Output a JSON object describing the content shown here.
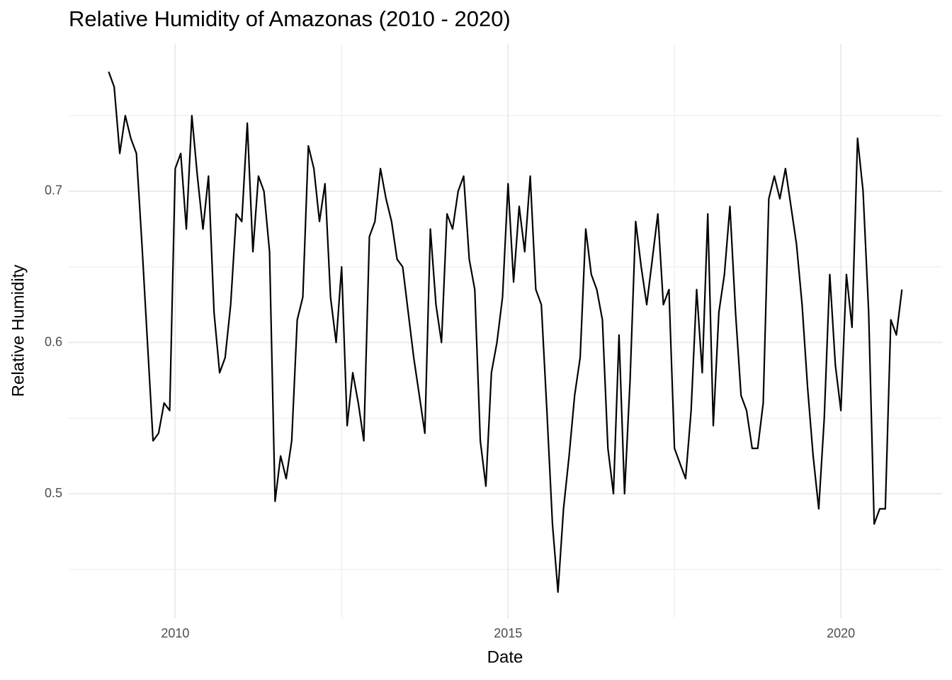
{
  "chart_data": {
    "type": "line",
    "title": "Relative Humidity of Amazonas (2010 - 2020)",
    "xlabel": "Date",
    "ylabel": "Relative Humidity",
    "color": "#000000",
    "grid": true,
    "xlim": [
      2008.4,
      2021.52
    ],
    "ylim": [
      0.4176,
      0.7974
    ],
    "xticks": [
      2010,
      2015,
      2020
    ],
    "yticks": [
      0.5,
      0.6,
      0.7
    ],
    "minor_xticks": [
      2012.5,
      2017.5
    ],
    "minor_yticks": [
      0.45,
      0.55,
      0.65,
      0.75
    ],
    "x": [
      2009.0,
      2009.083,
      2009.167,
      2009.25,
      2009.333,
      2009.417,
      2009.5,
      2009.583,
      2009.667,
      2009.75,
      2009.833,
      2009.917,
      2010.0,
      2010.083,
      2010.167,
      2010.25,
      2010.333,
      2010.417,
      2010.5,
      2010.583,
      2010.667,
      2010.75,
      2010.833,
      2010.917,
      2011.0,
      2011.083,
      2011.167,
      2011.25,
      2011.333,
      2011.417,
      2011.5,
      2011.583,
      2011.667,
      2011.75,
      2011.833,
      2011.917,
      2012.0,
      2012.083,
      2012.167,
      2012.25,
      2012.333,
      2012.417,
      2012.5,
      2012.583,
      2012.667,
      2012.75,
      2012.833,
      2012.917,
      2013.0,
      2013.083,
      2013.167,
      2013.25,
      2013.333,
      2013.417,
      2013.5,
      2013.583,
      2013.667,
      2013.75,
      2013.833,
      2013.917,
      2014.0,
      2014.083,
      2014.167,
      2014.25,
      2014.333,
      2014.417,
      2014.5,
      2014.583,
      2014.667,
      2014.75,
      2014.833,
      2014.917,
      2015.0,
      2015.083,
      2015.167,
      2015.25,
      2015.333,
      2015.417,
      2015.5,
      2015.583,
      2015.667,
      2015.75,
      2015.833,
      2015.917,
      2016.0,
      2016.083,
      2016.167,
      2016.25,
      2016.333,
      2016.417,
      2016.5,
      2016.583,
      2016.667,
      2016.75,
      2016.833,
      2016.917,
      2017.0,
      2017.083,
      2017.167,
      2017.25,
      2017.333,
      2017.417,
      2017.5,
      2017.583,
      2017.667,
      2017.75,
      2017.833,
      2017.917,
      2018.0,
      2018.083,
      2018.167,
      2018.25,
      2018.333,
      2018.417,
      2018.5,
      2018.583,
      2018.667,
      2018.75,
      2018.833,
      2018.917,
      2019.0,
      2019.083,
      2019.167,
      2019.25,
      2019.333,
      2019.417,
      2019.5,
      2019.583,
      2019.667,
      2019.75,
      2019.833,
      2019.917,
      2020.0,
      2020.083,
      2020.167,
      2020.25,
      2020.333,
      2020.417,
      2020.5,
      2020.583,
      2020.667,
      2020.75,
      2020.833,
      2020.917
    ],
    "values": [
      0.779,
      0.769,
      0.725,
      0.75,
      0.735,
      0.725,
      0.665,
      0.6,
      0.535,
      0.54,
      0.56,
      0.555,
      0.715,
      0.725,
      0.675,
      0.75,
      0.71,
      0.675,
      0.71,
      0.62,
      0.58,
      0.59,
      0.625,
      0.685,
      0.68,
      0.745,
      0.66,
      0.71,
      0.7,
      0.66,
      0.495,
      0.525,
      0.51,
      0.535,
      0.615,
      0.63,
      0.73,
      0.715,
      0.68,
      0.705,
      0.63,
      0.6,
      0.65,
      0.545,
      0.58,
      0.56,
      0.535,
      0.67,
      0.68,
      0.715,
      0.695,
      0.68,
      0.655,
      0.65,
      0.62,
      0.59,
      0.565,
      0.54,
      0.675,
      0.625,
      0.6,
      0.685,
      0.675,
      0.7,
      0.71,
      0.655,
      0.635,
      0.535,
      0.505,
      0.58,
      0.6,
      0.63,
      0.705,
      0.64,
      0.69,
      0.66,
      0.71,
      0.635,
      0.625,
      0.555,
      0.48,
      0.435,
      0.49,
      0.525,
      0.565,
      0.59,
      0.675,
      0.645,
      0.635,
      0.615,
      0.53,
      0.5,
      0.605,
      0.5,
      0.575,
      0.68,
      0.65,
      0.625,
      0.655,
      0.685,
      0.625,
      0.635,
      0.53,
      0.52,
      0.51,
      0.555,
      0.635,
      0.58,
      0.685,
      0.545,
      0.62,
      0.645,
      0.69,
      0.62,
      0.565,
      0.555,
      0.53,
      0.53,
      0.56,
      0.695,
      0.71,
      0.695,
      0.715,
      0.69,
      0.665,
      0.625,
      0.57,
      0.525,
      0.49,
      0.55,
      0.645,
      0.585,
      0.555,
      0.645,
      0.61,
      0.735,
      0.7,
      0.62,
      0.48,
      0.49,
      0.49,
      0.615,
      0.605,
      0.635
    ]
  }
}
